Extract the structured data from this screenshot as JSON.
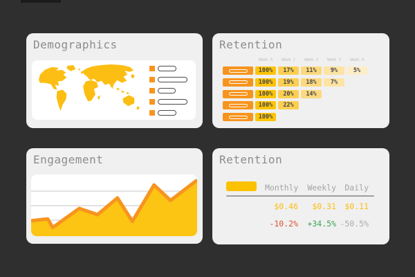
{
  "app": {
    "background": "#2f2f2f",
    "card_color": "#f0f0f0",
    "accent_orange": "#f7941e",
    "accent_gold": "#fcc200",
    "map_yellow": "#fcbe13"
  },
  "demographics": {
    "title": "Demographics",
    "legend_item_count": 5
  },
  "cohort": {
    "title": "Retention",
    "week_headers": [
      "Week 0",
      "Week 1",
      "Week 2",
      "Week 3",
      "Week 4"
    ],
    "chart_data": {
      "type": "table",
      "columns": [
        "Week 0",
        "Week 1",
        "Week 2",
        "Week 3",
        "Week 4"
      ],
      "rows": [
        [
          "100%",
          "17%",
          "11%",
          "9%",
          "5%"
        ],
        [
          "100%",
          "19%",
          "18%",
          "7%"
        ],
        [
          "100%",
          "20%",
          "14%"
        ],
        [
          "100%",
          "22%"
        ],
        [
          "100%"
        ]
      ]
    },
    "rows": [
      [
        "100%",
        "17%",
        "11%",
        "9%",
        "5%"
      ],
      [
        "100%",
        "19%",
        "18%",
        "7%"
      ],
      [
        "100%",
        "20%",
        "14%"
      ],
      [
        "100%",
        "22%"
      ],
      [
        "100%"
      ]
    ]
  },
  "engagement": {
    "title": "Engagement",
    "chart_data": {
      "type": "area",
      "x": [
        0,
        10,
        13,
        29,
        40,
        52,
        61,
        74,
        84,
        100
      ],
      "values": [
        25,
        28,
        14,
        45,
        35,
        62,
        24,
        83,
        58,
        91
      ],
      "title": "Engagement",
      "xlabel": "",
      "ylabel": "",
      "ylim": [
        0,
        100
      ],
      "gridlines": 3,
      "line_color": "#f7941e",
      "fill_color": "#fcc413"
    }
  },
  "retention_summary": {
    "title": "Retention",
    "columns": [
      "Monthly",
      "Weekly",
      "Daily"
    ],
    "values": [
      "$0.46",
      "$0.31",
      "$0.11"
    ],
    "changes": [
      {
        "text": "-10.2%",
        "color": "#dd5430"
      },
      {
        "text": "+34.5%",
        "color": "#3da35c"
      },
      {
        "text": "-50.5%",
        "color": "#ababab"
      }
    ]
  }
}
